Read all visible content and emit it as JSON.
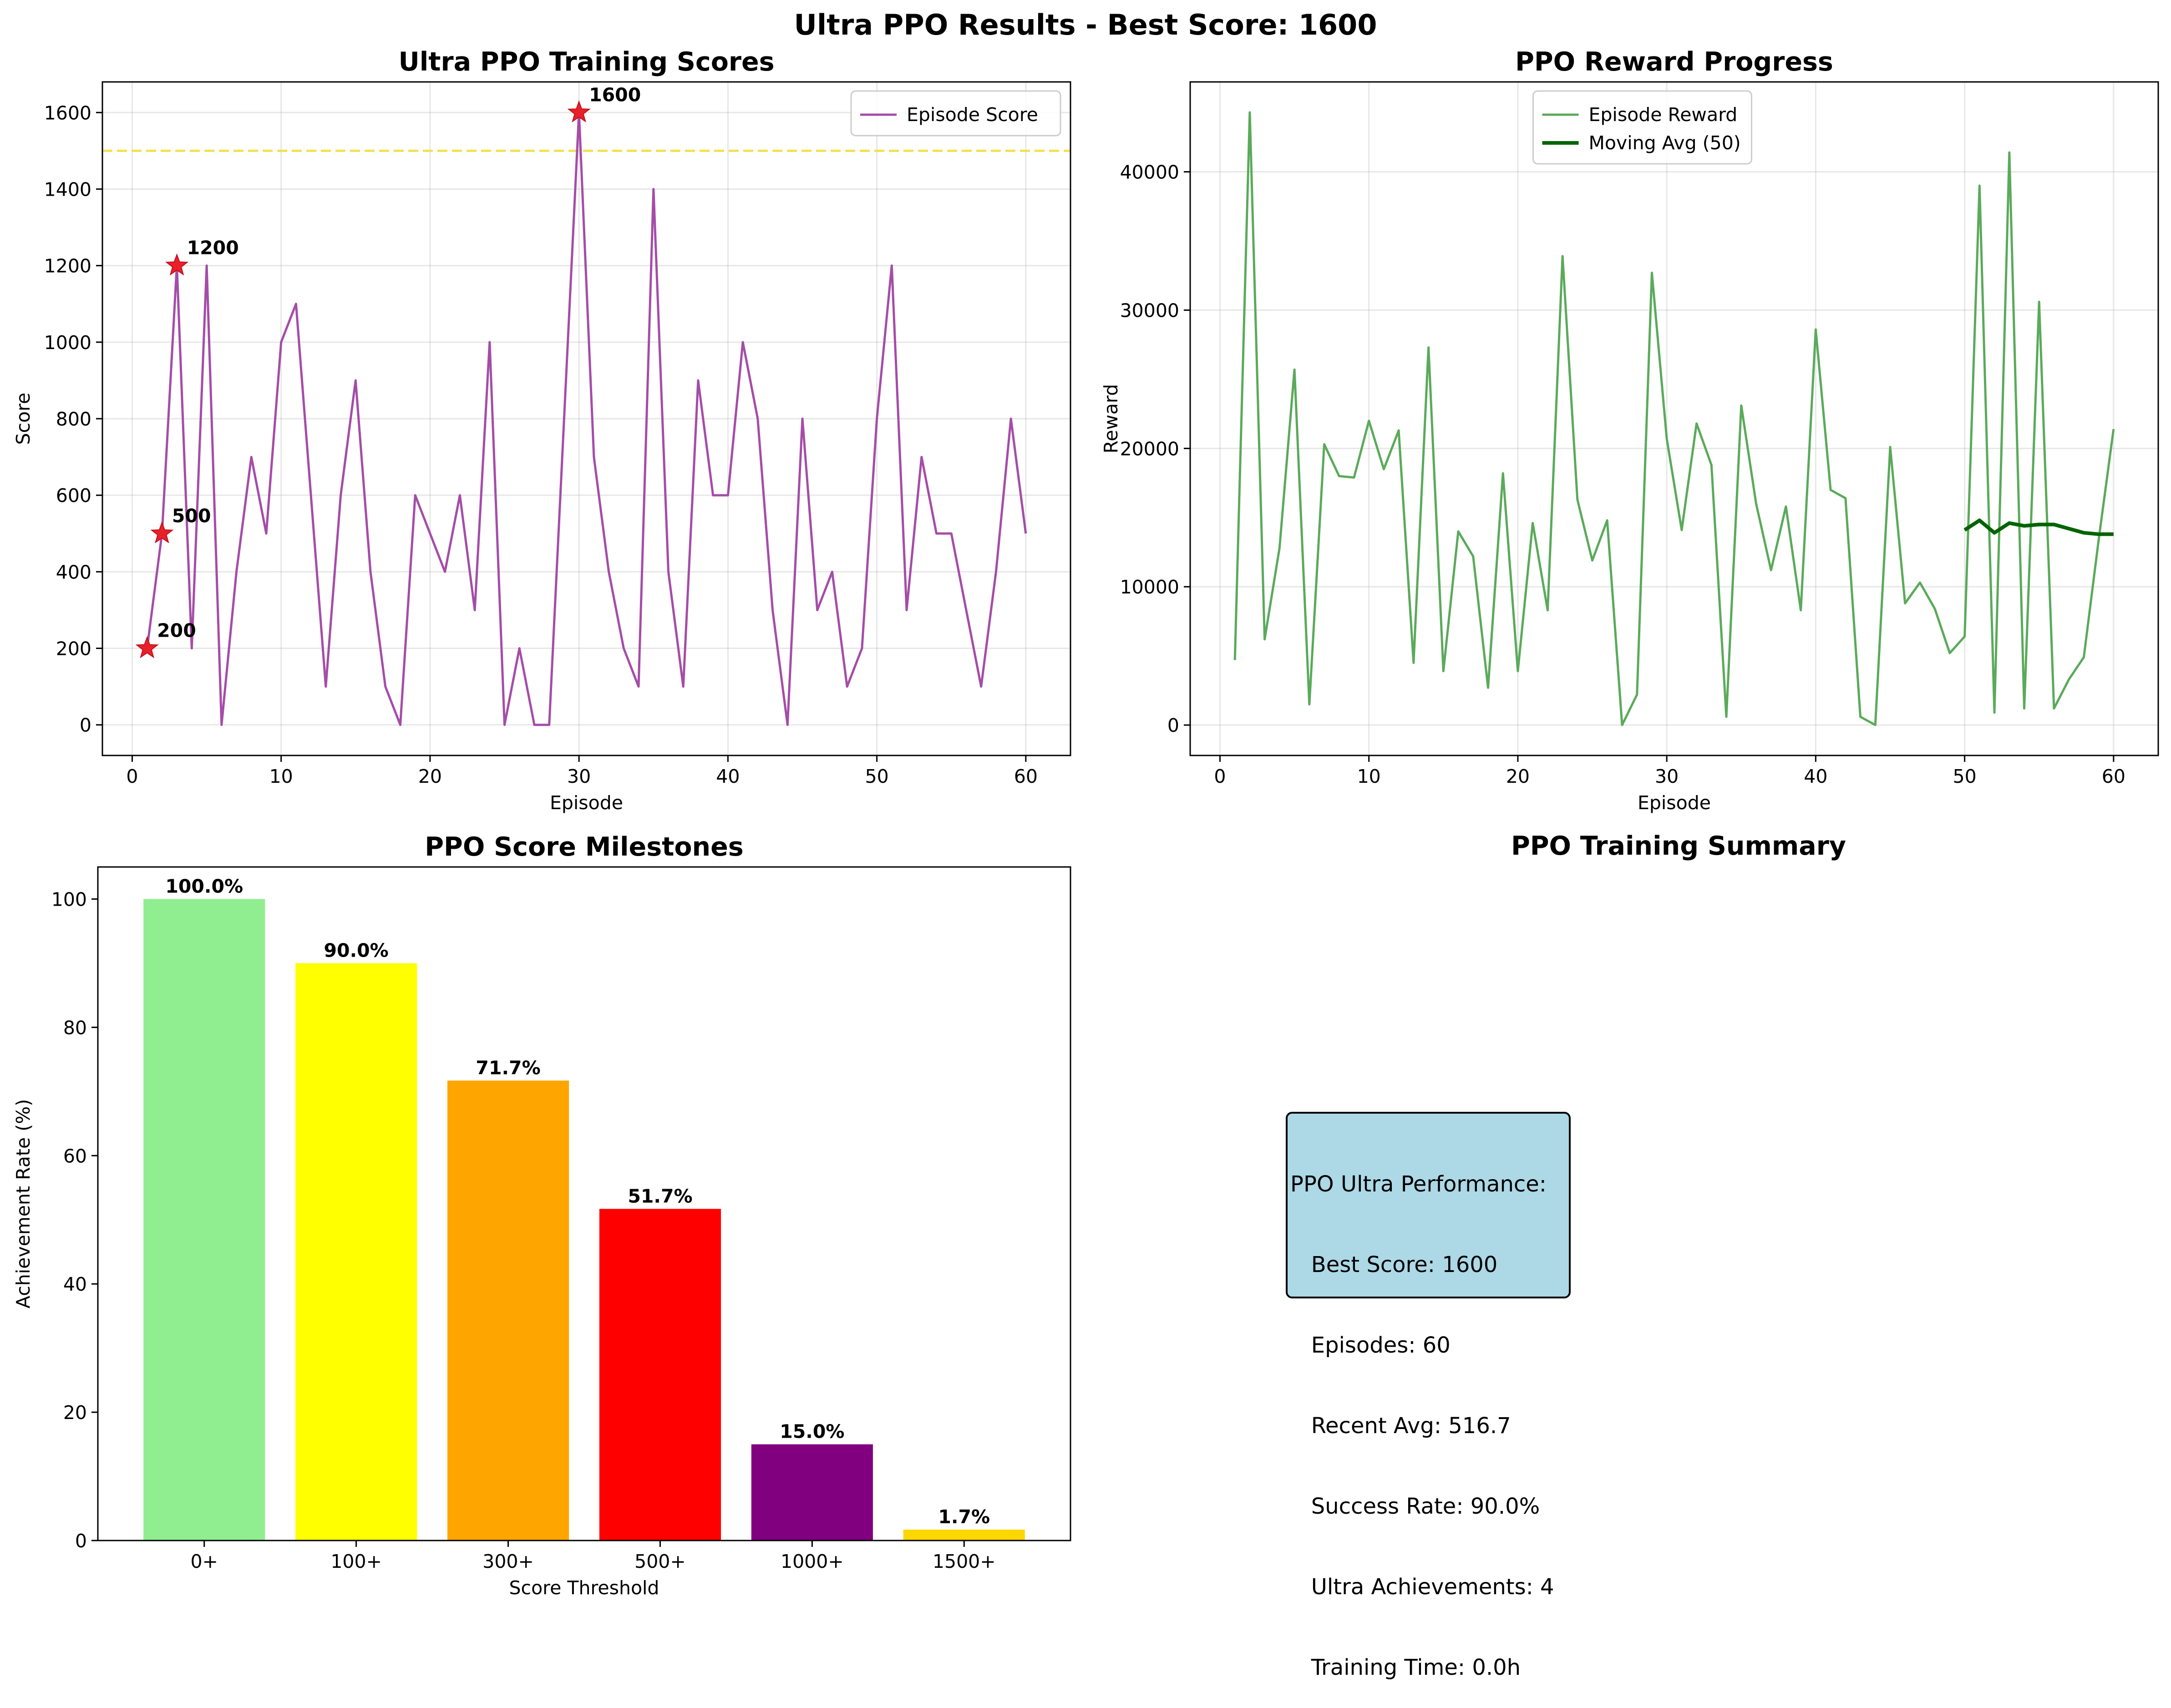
{
  "figure": {
    "suptitle": "Ultra PPO Results - Best Score: 1600"
  },
  "chart_data": [
    {
      "type": "line",
      "title": "Ultra PPO Training Scores",
      "xlabel": "Episode",
      "ylabel": "Score",
      "xlim": [
        -2,
        63
      ],
      "ylim": [
        -80,
        1680
      ],
      "xticks": [
        0,
        10,
        20,
        30,
        40,
        50,
        60
      ],
      "yticks": [
        0,
        200,
        400,
        600,
        800,
        1000,
        1200,
        1400,
        1600
      ],
      "grid": true,
      "legend": "top-right",
      "series": [
        {
          "name": "Episode Score",
          "color": "#a54ca8",
          "x": [
            1,
            2,
            3,
            4,
            5,
            6,
            7,
            8,
            9,
            10,
            11,
            12,
            13,
            14,
            15,
            16,
            17,
            18,
            19,
            20,
            21,
            22,
            23,
            24,
            25,
            26,
            27,
            28,
            29,
            30,
            31,
            32,
            33,
            34,
            35,
            36,
            37,
            38,
            39,
            40,
            41,
            42,
            43,
            44,
            45,
            46,
            47,
            48,
            49,
            50,
            51,
            52,
            53,
            54,
            55,
            56,
            57,
            58,
            59,
            60
          ],
          "values": [
            200,
            500,
            1200,
            200,
            1200,
            0,
            400,
            700,
            500,
            1000,
            1100,
            600,
            100,
            600,
            900,
            400,
            100,
            0,
            600,
            500,
            400,
            600,
            300,
            1000,
            0,
            200,
            0,
            0,
            800,
            1600,
            700,
            400,
            200,
            100,
            1400,
            400,
            100,
            900,
            600,
            600,
            1000,
            800,
            300,
            0,
            800,
            300,
            400,
            100,
            200,
            800,
            1200,
            300,
            700,
            500,
            500,
            300,
            100,
            400,
            800,
            500
          ]
        }
      ],
      "reference_line": {
        "y": 1500,
        "color": "#f4e04d"
      },
      "markers": [
        {
          "x": 1,
          "y": 200,
          "label": "200"
        },
        {
          "x": 2,
          "y": 500,
          "label": "500"
        },
        {
          "x": 3,
          "y": 1200,
          "label": "1200"
        },
        {
          "x": 30,
          "y": 1600,
          "label": "1600"
        }
      ]
    },
    {
      "type": "line",
      "title": "PPO Reward Progress",
      "xlabel": "Episode",
      "ylabel": "Reward",
      "xlim": [
        -2,
        63
      ],
      "ylim": [
        -2200,
        46500
      ],
      "xticks": [
        0,
        10,
        20,
        30,
        40,
        50,
        60
      ],
      "yticks": [
        0,
        10000,
        20000,
        30000,
        40000
      ],
      "grid": true,
      "legend": "top-center",
      "series": [
        {
          "name": "Episode Reward",
          "color": "#5aaa5a",
          "x": [
            1,
            2,
            3,
            4,
            5,
            6,
            7,
            8,
            9,
            10,
            11,
            12,
            13,
            14,
            15,
            16,
            17,
            18,
            19,
            20,
            21,
            22,
            23,
            24,
            25,
            26,
            27,
            28,
            29,
            30,
            31,
            32,
            33,
            34,
            35,
            36,
            37,
            38,
            39,
            40,
            41,
            42,
            43,
            44,
            45,
            46,
            47,
            48,
            49,
            50,
            51,
            52,
            53,
            54,
            55,
            56,
            57,
            58,
            59,
            60
          ],
          "values": [
            4700,
            44300,
            6200,
            12800,
            25700,
            1500,
            20300,
            18000,
            17900,
            22000,
            18500,
            21300,
            4500,
            27300,
            3900,
            14000,
            12200,
            2700,
            18200,
            3900,
            14600,
            8300,
            33900,
            16300,
            11900,
            14800,
            0,
            2200,
            32700,
            20700,
            14100,
            21800,
            18800,
            600,
            23100,
            16000,
            11200,
            15800,
            8300,
            28600,
            17000,
            16400,
            600,
            0,
            20100,
            8800,
            10300,
            8400,
            5200,
            6400,
            39000,
            900,
            41400,
            1200,
            30600,
            1200,
            3300,
            4900,
            13400,
            21400
          ]
        },
        {
          "name": "Moving Avg (50)",
          "color": "#006400",
          "x": [
            50,
            51,
            52,
            53,
            54,
            55,
            56,
            57,
            58,
            59,
            60
          ],
          "values": [
            14100,
            14800,
            13900,
            14600,
            14400,
            14500,
            14500,
            14200,
            13900,
            13800,
            13800
          ]
        }
      ]
    },
    {
      "type": "bar",
      "title": "PPO Score Milestones",
      "xlabel": "Score Threshold",
      "ylabel": "Achievement Rate (%)",
      "ylim": [
        0,
        105
      ],
      "yticks": [
        0,
        20,
        40,
        60,
        80,
        100
      ],
      "grid": false,
      "categories": [
        "0+",
        "100+",
        "300+",
        "500+",
        "1000+",
        "1500+"
      ],
      "values": [
        100.0,
        90.0,
        71.7,
        51.7,
        15.0,
        1.7
      ],
      "labels": [
        "100.0%",
        "90.0%",
        "71.7%",
        "51.7%",
        "15.0%",
        "1.7%"
      ],
      "colors": [
        "#90ee90",
        "#ffff00",
        "#ffa500",
        "#ff0000",
        "#800080",
        "#ffd700"
      ]
    }
  ],
  "summary": {
    "title": "PPO Training Summary",
    "lines": [
      "PPO Ultra Performance:",
      "   Best Score: 1600",
      "   Episodes: 60",
      "   Recent Avg: 516.7",
      "   Success Rate: 90.0%",
      "   Ultra Achievements: 4",
      "   Training Time: 0.0h"
    ]
  }
}
